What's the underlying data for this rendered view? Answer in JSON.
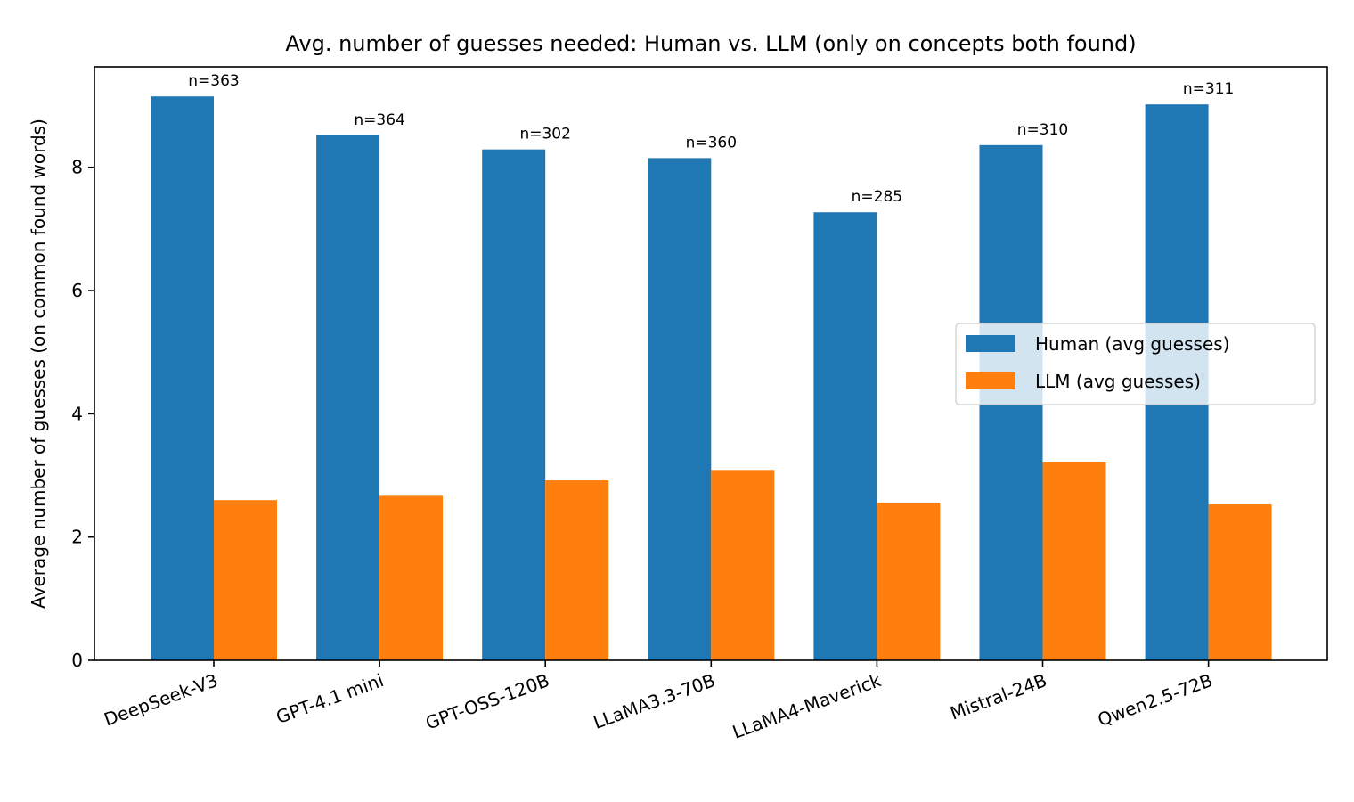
{
  "chart_data": {
    "type": "bar",
    "title": "Avg. number of guesses needed: Human vs. LLM (only on concepts both found)",
    "xlabel": "",
    "ylabel": "Average number of guesses (on common found words)",
    "ylim": [
      0,
      9.63
    ],
    "yticks": [
      0,
      2,
      4,
      6,
      8
    ],
    "categories": [
      "DeepSeek-V3",
      "GPT-4.1 mini",
      "GPT-OSS-120B",
      "LLaMA3.3-70B",
      "LLaMA4-Maverick",
      "Mistral-24B",
      "Qwen2.5-72B"
    ],
    "series": [
      {
        "name": "Human (avg guesses)",
        "color": "#1f77b4",
        "values": [
          9.15,
          8.52,
          8.29,
          8.15,
          7.27,
          8.36,
          9.02
        ]
      },
      {
        "name": "LLM (avg guesses)",
        "color": "#ff7f0e",
        "values": [
          2.6,
          2.67,
          2.92,
          3.09,
          2.56,
          3.21,
          2.53
        ]
      }
    ],
    "annotations": [
      "n=363",
      "n=364",
      "n=302",
      "n=360",
      "n=285",
      "n=310",
      "n=311"
    ],
    "legend": "center-right",
    "grid": false
  }
}
